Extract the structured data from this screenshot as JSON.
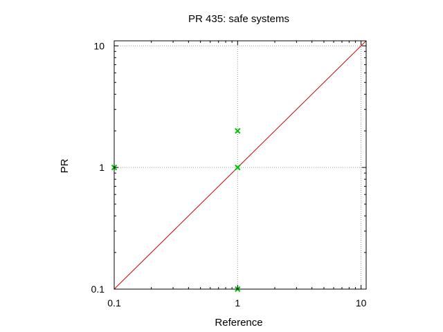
{
  "chart_data": {
    "type": "scatter",
    "title": "PR 435: safe systems",
    "xlabel": "Reference",
    "ylabel": "PR",
    "xscale": "log",
    "yscale": "log",
    "xlim": [
      0.1,
      11
    ],
    "ylim": [
      0.1,
      11
    ],
    "grid": true,
    "x_ticks": [
      0.1,
      1,
      10
    ],
    "x_tick_labels": [
      "0.1",
      "1",
      "10"
    ],
    "y_ticks": [
      0.1,
      1,
      10
    ],
    "y_tick_labels": [
      "0.1",
      "1",
      "10"
    ],
    "series": [
      {
        "marker": "x",
        "color": "#00c000",
        "points": [
          {
            "x": 0.1,
            "y": 1
          },
          {
            "x": 1,
            "y": 1
          },
          {
            "x": 1,
            "y": 2
          },
          {
            "x": 1,
            "y": 0.1
          }
        ]
      }
    ],
    "reference_line": {
      "type": "y=x",
      "color": "#cc0000"
    }
  }
}
